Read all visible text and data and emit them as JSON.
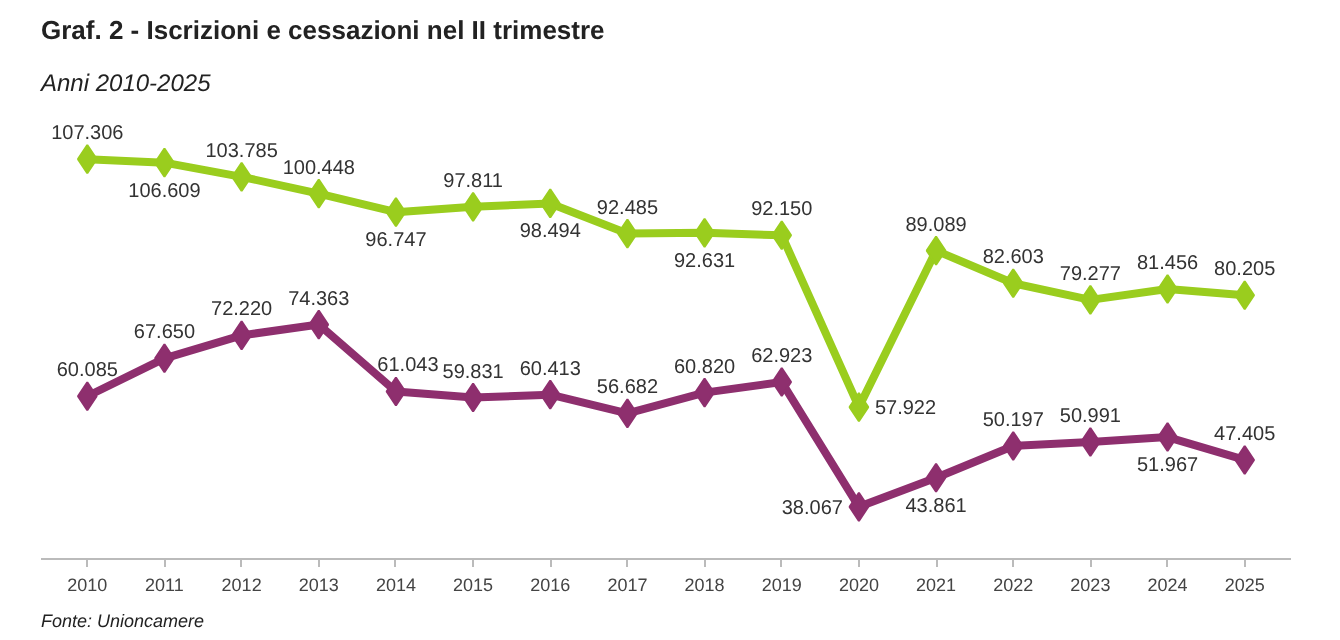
{
  "chart_data": {
    "type": "line",
    "title": "Graf. 2 - Iscrizioni e cessazioni nel II trimestre",
    "subtitle": "Anni 2010-2025",
    "categories": [
      "2010",
      "2011",
      "2012",
      "2013",
      "2014",
      "2015",
      "2016",
      "2017",
      "2018",
      "2019",
      "2020",
      "2021",
      "2022",
      "2023",
      "2024",
      "2025"
    ],
    "series": [
      {
        "color": "#9acd1e",
        "values": [
          107306,
          106609,
          103785,
          100448,
          96747,
          97811,
          98494,
          92485,
          92631,
          92150,
          57922,
          89089,
          82603,
          79277,
          81456,
          80205
        ],
        "value_labels": [
          "107.306",
          "106.609",
          "103.785",
          "100.448",
          "96.747",
          "97.811",
          "98.494",
          "92.485",
          "92.631",
          "92.150",
          "57.922",
          "89.089",
          "82.603",
          "79.277",
          "81.456",
          "80.205"
        ]
      },
      {
        "color": "#8e2f6e",
        "values": [
          60085,
          67650,
          72220,
          74363,
          61043,
          59831,
          60413,
          56682,
          60820,
          62923,
          38067,
          43861,
          50197,
          50991,
          51967,
          47405
        ],
        "value_labels": [
          "60.085",
          "67.650",
          "72.220",
          "74.363",
          "61.043",
          "59.831",
          "60.413",
          "56.682",
          "60.820",
          "62.923",
          "38.067",
          "43.861",
          "50.197",
          "50.991",
          "51.967",
          "47.405"
        ]
      }
    ],
    "marker": "diamond",
    "line_style": "solid",
    "grid": false,
    "tick_labels": "x",
    "annotations": [
      "Fonte: Unioncamere"
    ]
  }
}
